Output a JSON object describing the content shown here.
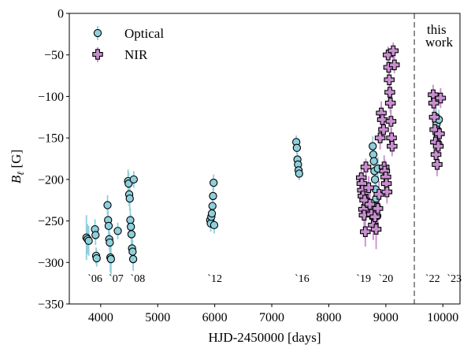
{
  "chart_data": {
    "type": "scatter",
    "xlabel": "HJD-2450000 [days]",
    "ylabel_main": "B",
    "ylabel_sub": "ℓ",
    "ylabel_unit": " [G]",
    "xlim": [
      3450,
      10300
    ],
    "ylim": [
      -350,
      0
    ],
    "xticks": [
      4000,
      5000,
      6000,
      7000,
      8000,
      9000,
      10000
    ],
    "yticks": [
      0,
      -50,
      -100,
      -150,
      -200,
      -250,
      -300,
      -350
    ],
    "grid": false,
    "legend_position": "top-left",
    "divider_x": 9500,
    "annotation_lines": [
      "this",
      "work"
    ],
    "year_labels": [
      {
        "text": "`06",
        "x": 3900
      },
      {
        "text": "`07",
        "x": 4270
      },
      {
        "text": "`08",
        "x": 4650
      },
      {
        "text": "`12",
        "x": 6000
      },
      {
        "text": "`16",
        "x": 7530
      },
      {
        "text": "`19",
        "x": 8610
      },
      {
        "text": "`20",
        "x": 9000
      },
      {
        "text": "`22",
        "x": 9820
      },
      {
        "text": "`23",
        "x": 10200
      }
    ],
    "series": [
      {
        "name": "Optical",
        "marker": "circle",
        "color": "#8ecfdc",
        "errcolor": "#8ecfdc",
        "points": [
          [
            3750,
            -270,
            27
          ],
          [
            3770,
            -272,
            18
          ],
          [
            3790,
            -274,
            18
          ],
          [
            3900,
            -260,
            12
          ],
          [
            3910,
            -267,
            12
          ],
          [
            3920,
            -292,
            10
          ],
          [
            3930,
            -295,
            10
          ],
          [
            4120,
            -231,
            12
          ],
          [
            4130,
            -249,
            12
          ],
          [
            4140,
            -256,
            12
          ],
          [
            4150,
            -272,
            12
          ],
          [
            4160,
            -276,
            12
          ],
          [
            4170,
            -294,
            18
          ],
          [
            4180,
            -296,
            18
          ],
          [
            4300,
            -262,
            10
          ],
          [
            4480,
            -202,
            14
          ],
          [
            4490,
            -205,
            14
          ],
          [
            4500,
            -218,
            14
          ],
          [
            4510,
            -223,
            14
          ],
          [
            4520,
            -249,
            14
          ],
          [
            4530,
            -257,
            14
          ],
          [
            4540,
            -266,
            14
          ],
          [
            4550,
            -283,
            14
          ],
          [
            4560,
            -287,
            14
          ],
          [
            4570,
            -296,
            14
          ],
          [
            4580,
            -200,
            10
          ],
          [
            5920,
            -249,
            10
          ],
          [
            5930,
            -253,
            10
          ],
          [
            5940,
            -245,
            10
          ],
          [
            5950,
            -241,
            10
          ],
          [
            5960,
            -232,
            10
          ],
          [
            5970,
            -220,
            10
          ],
          [
            5980,
            -204,
            10
          ],
          [
            5990,
            -255,
            10
          ],
          [
            7430,
            -155,
            8
          ],
          [
            7440,
            -162,
            8
          ],
          [
            7450,
            -176,
            8
          ],
          [
            7460,
            -182,
            8
          ],
          [
            7470,
            -189,
            8
          ],
          [
            7480,
            -193,
            8
          ],
          [
            8770,
            -160,
            12
          ],
          [
            8780,
            -170,
            14
          ],
          [
            8790,
            -178,
            14
          ],
          [
            8800,
            -190,
            14
          ],
          [
            8810,
            -200,
            16
          ],
          [
            8820,
            -212,
            16
          ],
          [
            8830,
            -223,
            18
          ],
          [
            8840,
            -232,
            18
          ],
          [
            8850,
            -244,
            18
          ],
          [
            8860,
            -187,
            14
          ],
          [
            9880,
            -125,
            12
          ],
          [
            9890,
            -133,
            12
          ],
          [
            9900,
            -140,
            12
          ],
          [
            9910,
            -147,
            12
          ],
          [
            9920,
            -157,
            12
          ],
          [
            9930,
            -128,
            12
          ]
        ]
      },
      {
        "name": "NIR",
        "marker": "plus",
        "color": "#c88ed0",
        "errcolor": "#c88ed0",
        "points": [
          [
            8570,
            -198,
            10
          ],
          [
            8580,
            -205,
            10
          ],
          [
            8590,
            -213,
            12
          ],
          [
            8600,
            -220,
            12
          ],
          [
            8610,
            -236,
            14
          ],
          [
            8620,
            -243,
            14
          ],
          [
            8630,
            -225,
            12
          ],
          [
            8640,
            -263,
            18
          ],
          [
            8650,
            -185,
            10
          ],
          [
            8700,
            -210,
            14
          ],
          [
            8720,
            -230,
            16
          ],
          [
            8750,
            -242,
            16
          ],
          [
            8780,
            -255,
            18
          ],
          [
            8810,
            -245,
            20
          ],
          [
            8830,
            -260,
            24
          ],
          [
            8860,
            -235,
            18
          ],
          [
            8880,
            -218,
            16
          ],
          [
            8900,
            -150,
            14
          ],
          [
            8920,
            -120,
            14
          ],
          [
            8940,
            -128,
            14
          ],
          [
            8960,
            -140,
            12
          ],
          [
            8970,
            -185,
            14
          ],
          [
            8980,
            -190,
            14
          ],
          [
            9000,
            -197,
            14
          ],
          [
            9010,
            -205,
            14
          ],
          [
            9020,
            -215,
            14
          ],
          [
            9040,
            -50,
            10
          ],
          [
            9050,
            -65,
            10
          ],
          [
            9060,
            -80,
            12
          ],
          [
            9070,
            -95,
            12
          ],
          [
            9080,
            -108,
            12
          ],
          [
            9090,
            -130,
            14
          ],
          [
            9100,
            -150,
            12
          ],
          [
            9110,
            -160,
            12
          ],
          [
            9130,
            -45,
            10
          ],
          [
            9150,
            -62,
            10
          ],
          [
            9830,
            -98,
            12
          ],
          [
            9840,
            -108,
            12
          ],
          [
            9850,
            -125,
            12
          ],
          [
            9860,
            -140,
            14
          ],
          [
            9870,
            -155,
            14
          ],
          [
            9880,
            -170,
            14
          ],
          [
            9900,
            -182,
            14
          ],
          [
            9920,
            -160,
            14
          ],
          [
            9940,
            -145,
            14
          ],
          [
            9960,
            -102,
            12
          ]
        ]
      }
    ]
  }
}
